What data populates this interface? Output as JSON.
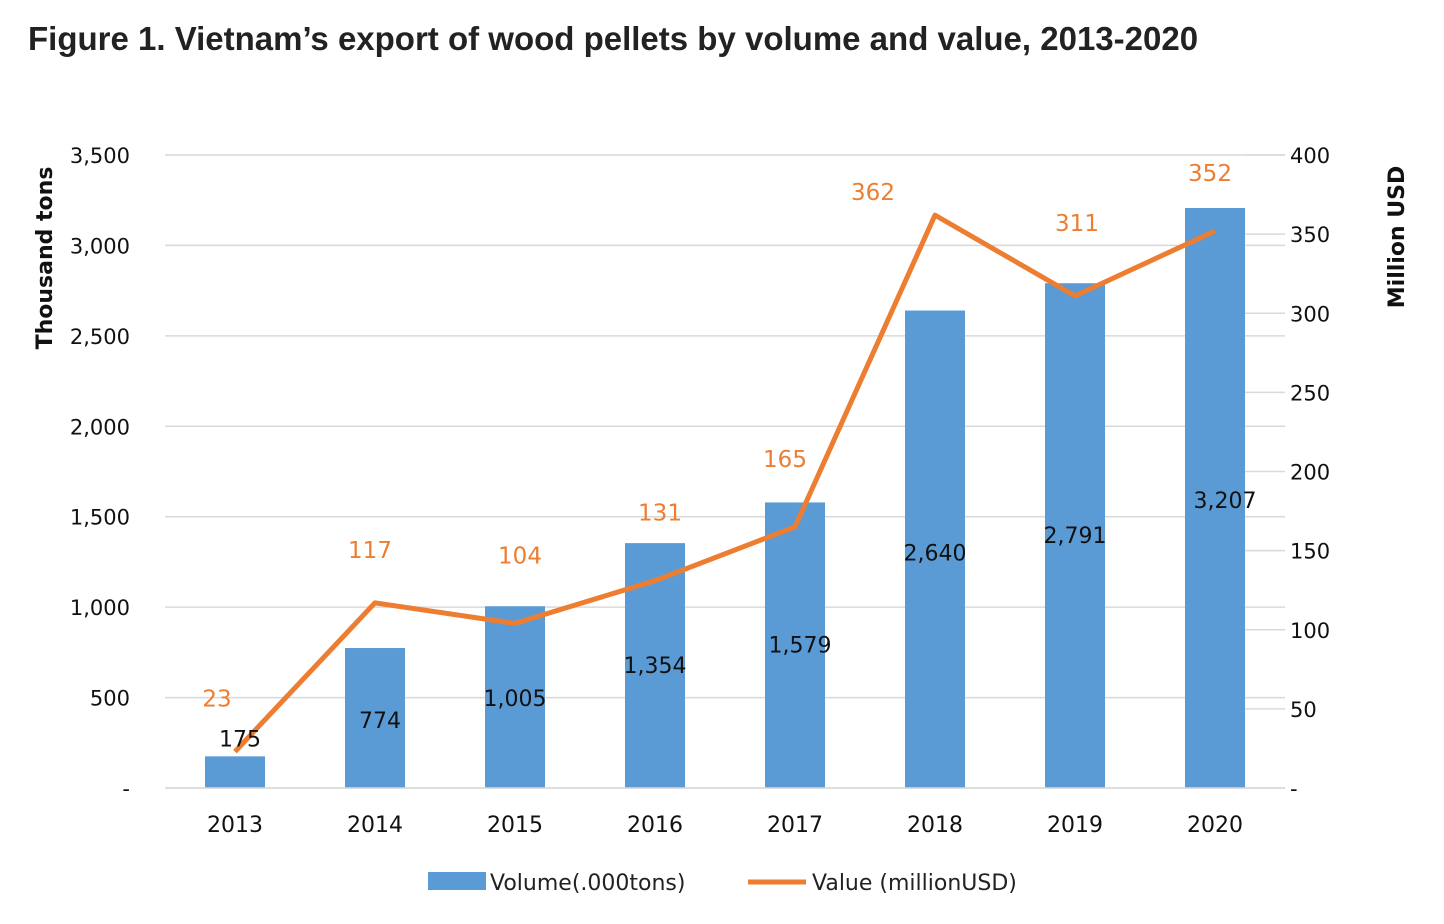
{
  "chart_data": {
    "type": "bar+line",
    "title": "Figure 1. Vietnam’s export of wood pellets by volume and value, 2013-2020",
    "categories": [
      "2013",
      "2014",
      "2015",
      "2016",
      "2017",
      "2018",
      "2019",
      "2020"
    ],
    "ylabel_left": "Thousand tons",
    "ylabel_right": "Million USD",
    "ylim_left": [
      0,
      3500
    ],
    "ylim_right": [
      0,
      400
    ],
    "yticks_left": [
      "-",
      "500",
      "1,000",
      "1,500",
      "2,000",
      "2,500",
      "3,000",
      "3,500"
    ],
    "yticks_right": [
      "-",
      "50",
      "100",
      "150",
      "200",
      "250",
      "300",
      "350",
      "400"
    ],
    "grid": true,
    "legend_position": "bottom",
    "series": [
      {
        "name": "Volume(.000tons)",
        "type": "bar",
        "axis": "left",
        "color": "#5b9bd5",
        "values": [
          175,
          774,
          1005,
          1354,
          1579,
          2640,
          2791,
          3207
        ],
        "labels": [
          "175",
          "774",
          "1,005",
          "1,354",
          "1,579",
          "2,640",
          "2,791",
          "3,207"
        ]
      },
      {
        "name": "Value (millionUSD)",
        "type": "line",
        "axis": "right",
        "color": "#ed7d31",
        "values": [
          23,
          117,
          104,
          131,
          165,
          362,
          311,
          352
        ],
        "labels": [
          "23",
          "117",
          "104",
          "131",
          "165",
          "362",
          "311",
          "352"
        ]
      }
    ]
  }
}
